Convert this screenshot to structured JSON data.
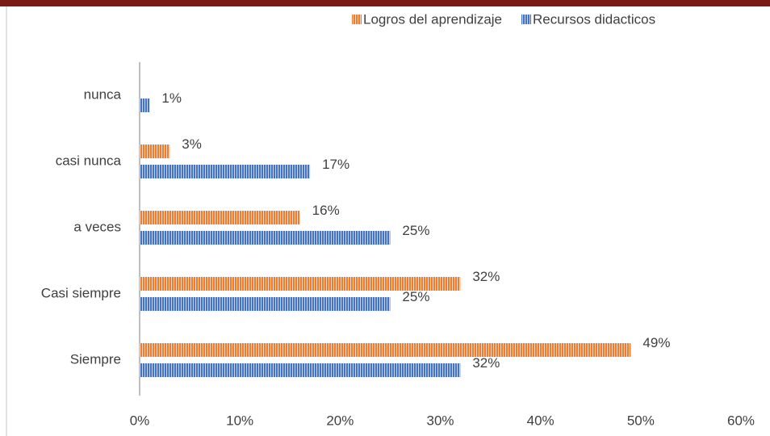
{
  "chart_data": {
    "type": "hbar",
    "categories": [
      "nunca",
      "casi nunca",
      "a veces",
      "Casi siempre",
      "Siempre"
    ],
    "series": [
      {
        "name": "Logros del aprendizaje",
        "color": "#ed7d31",
        "values": [
          null,
          3,
          16,
          32,
          49
        ],
        "value_labels": [
          null,
          "3%",
          "16%",
          "32%",
          "49%"
        ]
      },
      {
        "name": "Recursos didacticos",
        "color": "#4472c4",
        "values": [
          1,
          17,
          25,
          25,
          32
        ],
        "value_labels": [
          "1%",
          "17%",
          "25%",
          "25%",
          "32%"
        ]
      }
    ],
    "xlim": [
      0,
      60
    ],
    "xticks": [
      {
        "value": 0,
        "label": "0%"
      },
      {
        "value": 10,
        "label": "10%"
      },
      {
        "value": 20,
        "label": "20%"
      },
      {
        "value": 30,
        "label": "30%"
      },
      {
        "value": 40,
        "label": "40%"
      },
      {
        "value": 50,
        "label": "50%"
      },
      {
        "value": 60,
        "label": "60%"
      }
    ],
    "legend": "top",
    "grid": false
  }
}
